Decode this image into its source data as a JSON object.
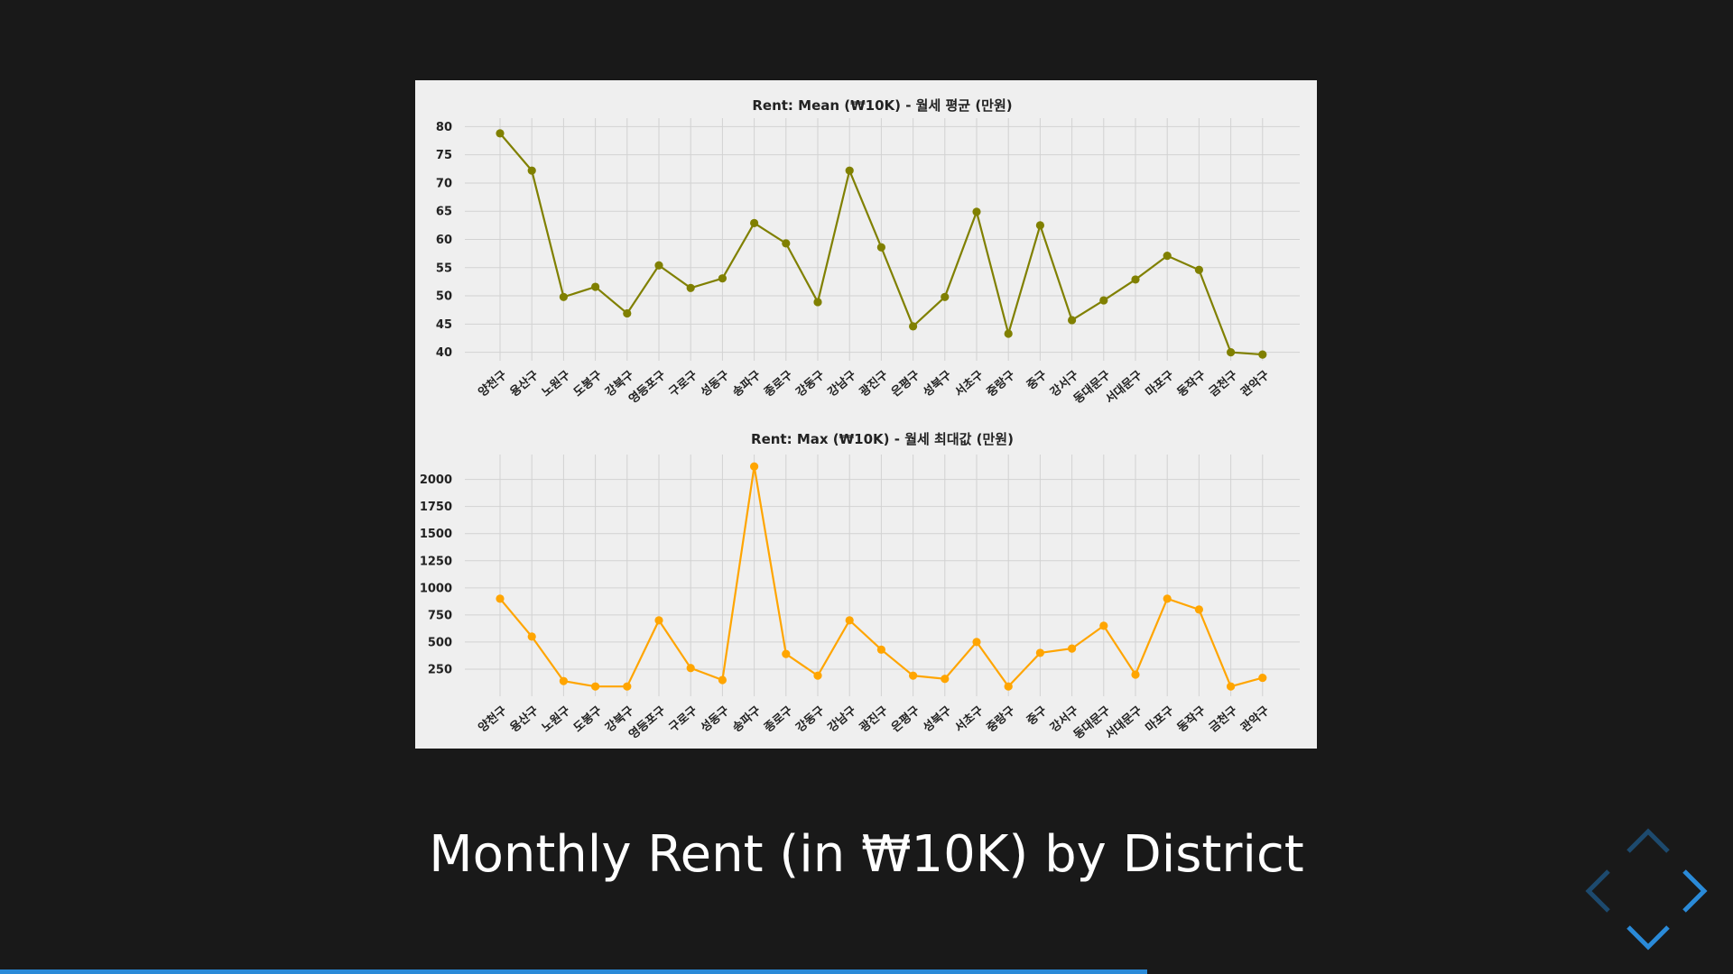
{
  "slide": {
    "title": "Monthly Rent (in ₩10K) by District",
    "progress": 0.662
  },
  "navigation": {
    "left_icon": "chevron-left-icon",
    "right_icon": "chevron-right-icon",
    "up_icon": "chevron-up-icon",
    "down_icon": "chevron-down-icon",
    "enabled_color": "#2a8ad8",
    "disabled_color": "#1d4a6e"
  },
  "chart_data": [
    {
      "type": "line",
      "title": "Rent: Mean (₩10K) - 월세 평균 (만원)",
      "categories": [
        "양천구",
        "용산구",
        "노원구",
        "도봉구",
        "강북구",
        "영등포구",
        "구로구",
        "성동구",
        "송파구",
        "종로구",
        "강동구",
        "강남구",
        "광진구",
        "은평구",
        "성북구",
        "서초구",
        "중랑구",
        "중구",
        "강서구",
        "동대문구",
        "서대문구",
        "마포구",
        "동작구",
        "금천구",
        "관악구"
      ],
      "values": [
        78.8,
        72.2,
        49.8,
        51.6,
        46.9,
        55.4,
        51.4,
        53.1,
        62.9,
        59.3,
        48.9,
        72.2,
        58.6,
        44.6,
        49.8,
        64.9,
        43.3,
        62.5,
        45.7,
        49.2,
        52.9,
        57.1,
        54.6,
        40.0,
        39.6
      ],
      "color": "#808000",
      "yticks": [
        40,
        45,
        50,
        55,
        60,
        65,
        70,
        75,
        80
      ],
      "ylim": [
        38.5,
        81.5
      ],
      "grid": true
    },
    {
      "type": "line",
      "title": "Rent: Max (₩10K) - 월세 최대값 (만원)",
      "categories": [
        "양천구",
        "용산구",
        "노원구",
        "도봉구",
        "강북구",
        "영등포구",
        "구로구",
        "성동구",
        "송파구",
        "종로구",
        "강동구",
        "강남구",
        "광진구",
        "은평구",
        "성북구",
        "서초구",
        "중랑구",
        "중구",
        "강서구",
        "동대문구",
        "서대문구",
        "마포구",
        "동작구",
        "금천구",
        "관악구"
      ],
      "values": [
        900,
        550,
        140,
        90,
        90,
        700,
        260,
        150,
        2120,
        390,
        190,
        700,
        430,
        190,
        160,
        500,
        90,
        400,
        440,
        650,
        200,
        900,
        800,
        90,
        170
      ],
      "color": "#ffa500",
      "yticks": [
        250,
        500,
        750,
        1000,
        1250,
        1500,
        1750,
        2000
      ],
      "ylim": [
        0,
        2230
      ],
      "grid": true
    }
  ]
}
